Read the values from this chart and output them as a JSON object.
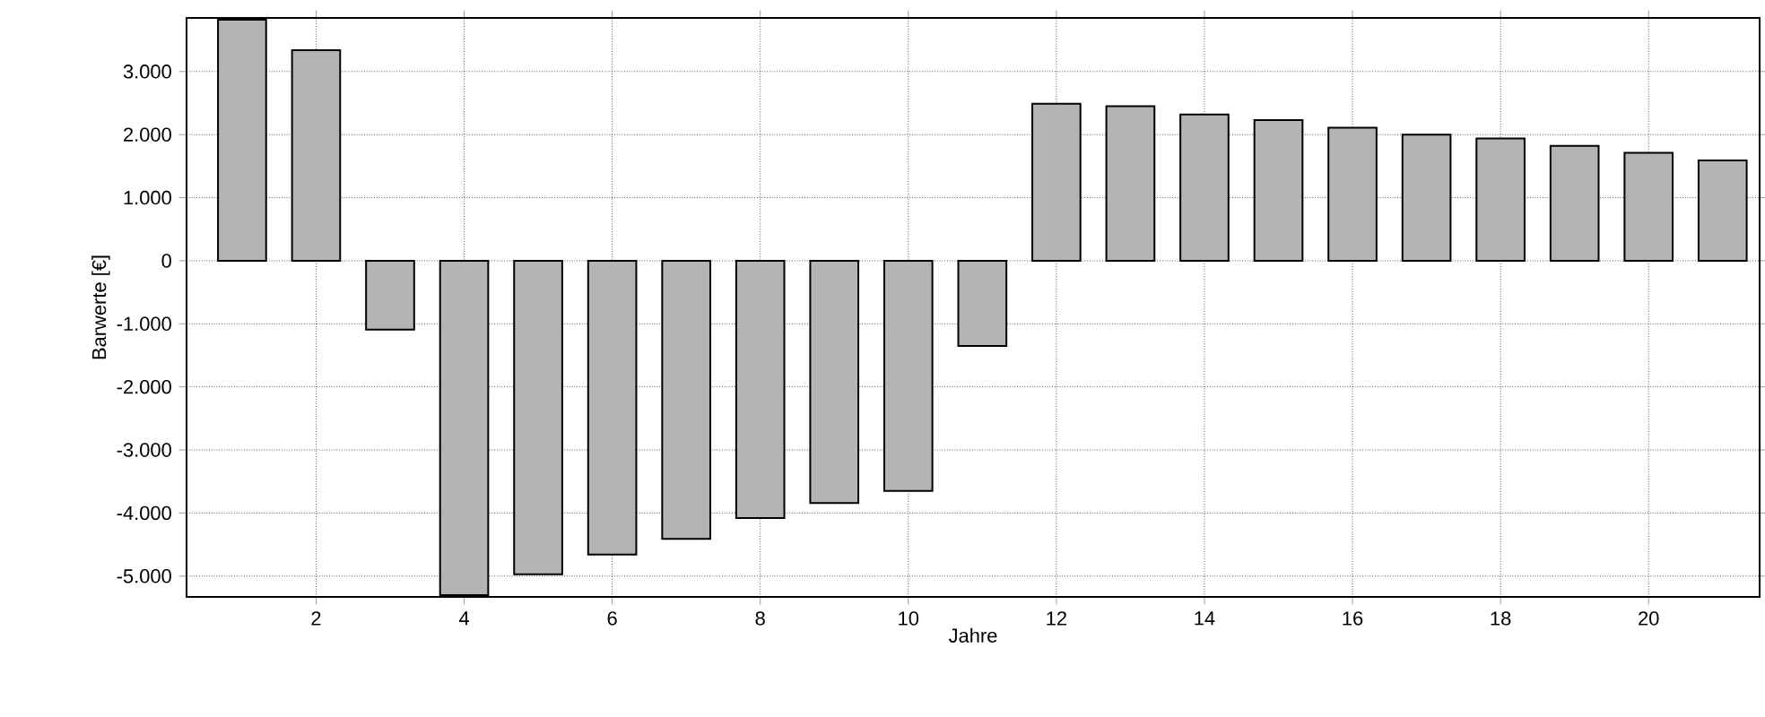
{
  "chart_data": {
    "type": "bar",
    "xlabel": "Jahre",
    "ylabel": "Barwerte [€]",
    "x": [
      1,
      2,
      3,
      4,
      5,
      6,
      7,
      8,
      9,
      10,
      11,
      12,
      13,
      14,
      15,
      16,
      17,
      18,
      19,
      20,
      21
    ],
    "values": [
      3820,
      3340,
      -1090,
      -5300,
      -4970,
      -4660,
      -4410,
      -4080,
      -3840,
      -3650,
      -1350,
      2490,
      2450,
      2320,
      2230,
      2110,
      2000,
      1940,
      1820,
      1710,
      1590
    ],
    "color": "#b4b4b4",
    "xlim": [
      0.25,
      21.5
    ],
    "xticks": [
      2,
      4,
      6,
      8,
      10,
      12,
      14,
      16,
      18,
      20
    ],
    "ylim": [
      -5330,
      3850
    ],
    "yticks": [
      {
        "value": -5000,
        "label": "-5.000"
      },
      {
        "value": -4000,
        "label": "-4.000"
      },
      {
        "value": -3000,
        "label": "-3.000"
      },
      {
        "value": -2000,
        "label": "-2.000"
      },
      {
        "value": -1000,
        "label": "-1.000"
      },
      0,
      {
        "value": 1000,
        "label": "1.000"
      },
      {
        "value": 2000,
        "label": "2.000"
      },
      {
        "value": 3000,
        "label": "3.000"
      }
    ],
    "grid": true
  }
}
